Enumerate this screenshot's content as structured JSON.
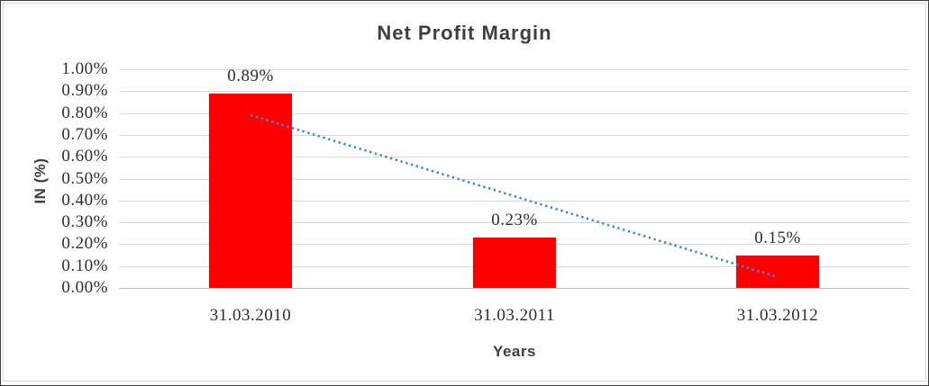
{
  "chart_data": {
    "type": "bar",
    "title": "Net Profit Margin",
    "xlabel": "Years",
    "ylabel": "IN (%)",
    "categories": [
      "31.03.2010",
      "31.03.2011",
      "31.03.2012"
    ],
    "values": [
      0.89,
      0.23,
      0.15
    ],
    "data_labels": [
      "0.89%",
      "0.23%",
      "0.15%"
    ],
    "y_ticks": [
      "1.00%",
      "0.90%",
      "0.80%",
      "0.70%",
      "0.60%",
      "0.50%",
      "0.40%",
      "0.30%",
      "0.20%",
      "0.10%",
      "0.00%"
    ],
    "ylim": [
      0.0,
      1.0
    ],
    "grid": true,
    "legend": "none",
    "bar_color": "#ff0000",
    "trendline": {
      "type": "linear",
      "style": "dotted",
      "color": "#4a85c6",
      "start_value": 0.79,
      "end_value": 0.05
    },
    "style": {
      "title_color": "#3f3f3f",
      "label_color": "#2e2e2e",
      "gridline_color": "#d9d9d9",
      "axis_line_color": "#bfbfbf"
    }
  }
}
